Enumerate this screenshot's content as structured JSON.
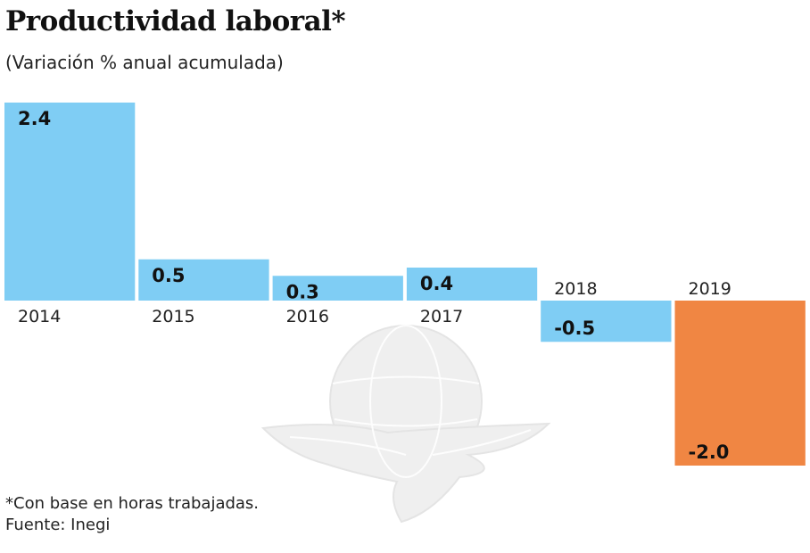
{
  "chart_data": {
    "type": "bar",
    "title": "Productividad laboral*",
    "subtitle": "(Variación % anual acumulada)",
    "categories": [
      "2014",
      "2015",
      "2016",
      "2017",
      "2018",
      "2019"
    ],
    "values": [
      2.4,
      0.5,
      0.3,
      0.4,
      -0.5,
      -2.0
    ],
    "value_labels": [
      "2.4",
      "0.5",
      "0.3",
      "0.4",
      "-0.5",
      "-2.0"
    ],
    "xlabel": "",
    "ylabel": "",
    "ylim": [
      -2.0,
      2.4
    ],
    "grid": false,
    "legend": "none",
    "colors": {
      "default": "#7fcdf4",
      "highlight": "#f08643",
      "highlight_category": "2019",
      "label_text": "#111111",
      "tick_text": "#222222"
    }
  },
  "footnotes": {
    "note": "*Con base en horas trabajadas.",
    "source": "Fuente: Inegi"
  },
  "watermark": {
    "icon": "eagle-globe-logo-icon"
  }
}
